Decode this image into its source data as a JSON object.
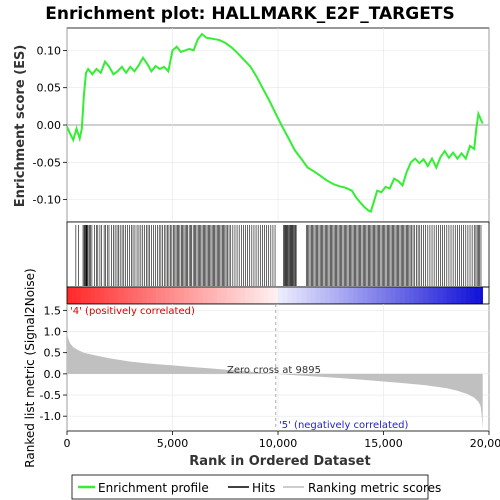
{
  "chart_data": {
    "type": "line",
    "title": "Enrichment plot: HALLMARK_E2F_TARGETS",
    "xlabel": "Rank in Ordered Dataset",
    "xlim": [
      0,
      20000
    ],
    "x_ticks": [
      0,
      5000,
      10000,
      15000,
      20000
    ],
    "x_tick_labels": [
      "0",
      "5,000",
      "10,000",
      "15,000",
      "20,000"
    ],
    "legend": [
      "Enrichment profile",
      "Hits",
      "Ranking metric scores"
    ],
    "legend_position": "bottom",
    "colors": {
      "enrichment_profile": "#33ee33",
      "hits": "#000000",
      "ranking_metric": "#c0c0c0",
      "positive_label": "#dd0000",
      "negative_label": "#2222cc"
    },
    "es_panel": {
      "ylabel": "Enrichment score (ES)",
      "ylim": [
        -0.13,
        0.13
      ],
      "y_ticks": [
        -0.1,
        -0.05,
        0.0,
        0.05,
        0.1
      ],
      "y_tick_labels": [
        "-0.10",
        "-0.05",
        "0.00",
        "0.05",
        "0.10"
      ],
      "grid": true,
      "series": [
        {
          "x": [
            0,
            150,
            300,
            450,
            600,
            700,
            800,
            900,
            1000,
            1200,
            1400,
            1600,
            1800,
            2000,
            2200,
            2400,
            2600,
            2800,
            3000,
            3200,
            3400,
            3600,
            3800,
            4000,
            4200,
            4400,
            4600,
            4800,
            5000,
            5200,
            5400,
            5600,
            5800,
            6000,
            6200,
            6400,
            6600,
            6800,
            7000,
            7200,
            7500,
            7800,
            8100,
            8400,
            8700,
            9000,
            9300,
            9600,
            9895,
            10200,
            10500,
            10800,
            11100,
            11400,
            11700,
            12000,
            12300,
            12600,
            12900,
            13200,
            13500,
            13700,
            13900,
            14100,
            14300,
            14400,
            14500,
            14700,
            14900,
            15100,
            15300,
            15500,
            15700,
            15900,
            16100,
            16300,
            16500,
            16700,
            16900,
            17100,
            17300,
            17500,
            17700,
            17900,
            18100,
            18300,
            18500,
            18700,
            18900,
            19100,
            19300,
            19400,
            19500,
            19600,
            19700
          ],
          "values": [
            -0.002,
            -0.012,
            -0.02,
            -0.005,
            -0.018,
            -0.005,
            0.04,
            0.07,
            0.075,
            0.068,
            0.075,
            0.07,
            0.085,
            0.078,
            0.068,
            0.072,
            0.078,
            0.07,
            0.078,
            0.072,
            0.08,
            0.09,
            0.082,
            0.072,
            0.079,
            0.075,
            0.078,
            0.072,
            0.1,
            0.105,
            0.098,
            0.1,
            0.102,
            0.1,
            0.115,
            0.122,
            0.117,
            0.116,
            0.115,
            0.114,
            0.11,
            0.104,
            0.096,
            0.087,
            0.078,
            0.064,
            0.048,
            0.032,
            0.015,
            -0.002,
            -0.018,
            -0.034,
            -0.045,
            -0.057,
            -0.062,
            -0.068,
            -0.074,
            -0.079,
            -0.082,
            -0.084,
            -0.088,
            -0.097,
            -0.104,
            -0.11,
            -0.115,
            -0.116,
            -0.107,
            -0.088,
            -0.09,
            -0.083,
            -0.085,
            -0.072,
            -0.075,
            -0.081,
            -0.063,
            -0.05,
            -0.045,
            -0.051,
            -0.046,
            -0.055,
            -0.045,
            -0.057,
            -0.043,
            -0.035,
            -0.044,
            -0.037,
            -0.045,
            -0.038,
            -0.045,
            -0.028,
            -0.032,
            -0.005,
            0.015,
            0.008,
            0.002
          ]
        }
      ]
    },
    "hits": [
      420,
      540,
      760,
      810,
      850,
      880,
      910,
      940,
      970,
      1000,
      1060,
      1120,
      1180,
      1310,
      1390,
      1460,
      1560,
      1640,
      1760,
      1830,
      1930,
      1990,
      2110,
      2200,
      2280,
      2370,
      2450,
      2520,
      2610,
      2690,
      2780,
      2870,
      2960,
      3050,
      3130,
      3220,
      3320,
      3410,
      3500,
      3590,
      3680,
      3760,
      3840,
      3920,
      4010,
      4100,
      4200,
      4290,
      4370,
      4450,
      4530,
      4610,
      4690,
      4760,
      4830,
      4900,
      4970,
      5040,
      5110,
      5170,
      5230,
      5290,
      5350,
      5420,
      5480,
      5540,
      5600,
      5660,
      5720,
      5790,
      5850,
      5910,
      5980,
      6040,
      6100,
      6160,
      6220,
      6280,
      6340,
      6400,
      6460,
      6520,
      6580,
      6640,
      6700,
      6760,
      6820,
      6880,
      6940,
      7000,
      7060,
      7120,
      7180,
      7240,
      7300,
      7360,
      7420,
      7480,
      7540,
      7600,
      7680,
      7760,
      7860,
      7960,
      8060,
      8160,
      8260,
      8360,
      8460,
      8560,
      8660,
      8760,
      8860,
      8960,
      9060,
      9160,
      9260,
      9360,
      9460,
      9560,
      9660,
      9760,
      9860,
      10260,
      10300,
      10340,
      10380,
      10420,
      10460,
      10500,
      10540,
      10580,
      10620,
      10660,
      10700,
      10740,
      10780,
      10820,
      10860,
      11340,
      11400,
      11460,
      11520,
      11580,
      11640,
      11700,
      11760,
      11820,
      11880,
      11940,
      12000,
      12060,
      12120,
      12180,
      12240,
      12300,
      12360,
      12420,
      12480,
      12540,
      12600,
      12660,
      12720,
      12780,
      12840,
      12900,
      12960,
      13020,
      13080,
      13140,
      13200,
      13260,
      13320,
      13380,
      13440,
      13500,
      13560,
      13620,
      13680,
      13740,
      13800,
      13860,
      13920,
      13980,
      14040,
      14100,
      14160,
      14220,
      14280,
      14340,
      14400,
      14460,
      14520,
      14580,
      14640,
      14700,
      14760,
      14820,
      14880,
      14940,
      15000,
      15060,
      15120,
      15180,
      15240,
      15300,
      15360,
      15420,
      15480,
      15540,
      15600,
      15660,
      15720,
      15780,
      15840,
      15900,
      15960,
      16020,
      16080,
      16140,
      16200,
      16260,
      16320,
      16400,
      16480,
      16560,
      16640,
      16720,
      16800,
      16900,
      17000,
      17100,
      17200,
      17300,
      17400,
      17500,
      17600,
      17700,
      17800,
      17900,
      18000,
      18100,
      18200,
      18300,
      18400,
      18500,
      18600,
      18700,
      18800,
      18900,
      19000,
      19100,
      19200,
      19300,
      19380,
      19440,
      19500,
      19560,
      19620
    ],
    "metric_panel": {
      "ylabel": "Ranked list metric (Signal2Noise)",
      "ylim": [
        -1.35,
        1.65
      ],
      "y_ticks": [
        -1.0,
        -0.5,
        0.0,
        0.5,
        1.0,
        1.5
      ],
      "y_tick_labels": [
        "-1.0",
        "-0.5",
        "0.0",
        "0.5",
        "1.0",
        "1.5"
      ],
      "grid": true,
      "zero_cross": 9895,
      "zero_cross_label": "Zero cross at 9895",
      "positive_label": "'4' (positively correlated)",
      "negative_label": "'5' (negatively correlated)",
      "series": [
        {
          "x": [
            0,
            30,
            80,
            150,
            300,
            500,
            800,
            1200,
            1600,
            2000,
            3000,
            4000,
            5000,
            6000,
            7000,
            8000,
            9000,
            9895,
            11000,
            12000,
            13000,
            14000,
            15000,
            16000,
            17000,
            18000,
            18500,
            19000,
            19300,
            19500,
            19600,
            19650,
            19700
          ],
          "values": [
            1.1,
            0.9,
            0.8,
            0.72,
            0.63,
            0.57,
            0.5,
            0.45,
            0.41,
            0.37,
            0.29,
            0.24,
            0.2,
            0.16,
            0.12,
            0.08,
            0.04,
            0.0,
            -0.04,
            -0.07,
            -0.1,
            -0.14,
            -0.18,
            -0.22,
            -0.27,
            -0.34,
            -0.4,
            -0.48,
            -0.56,
            -0.66,
            -0.76,
            -0.95,
            -1.3
          ]
        }
      ]
    }
  }
}
